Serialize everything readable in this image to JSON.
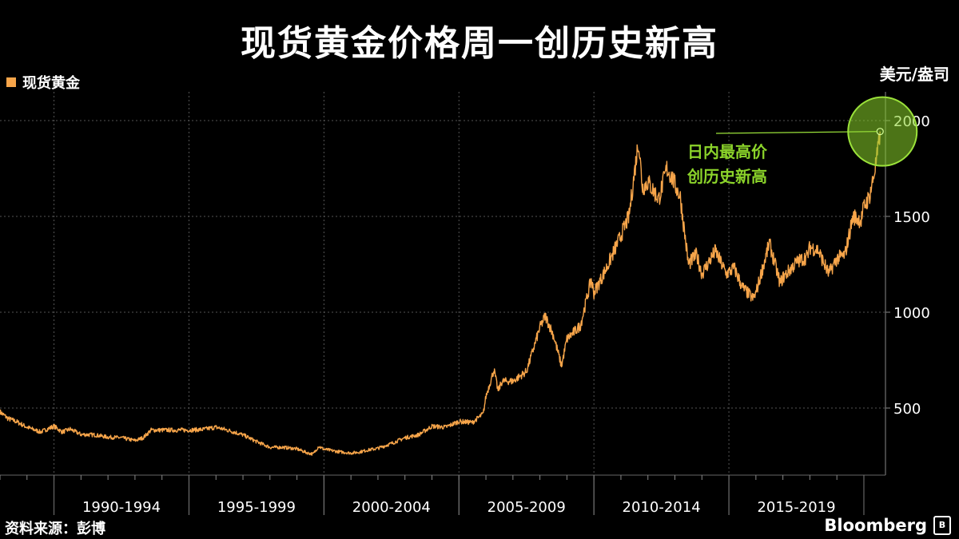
{
  "title": "现货黄金价格周一创历史新高",
  "unit": "美元/盎司",
  "source": "资料来源：彭博",
  "brand": "Bloomberg",
  "chart_data": {
    "type": "line",
    "title": "现货黄金价格周一创历史新高",
    "ylabel": "美元/盎司",
    "ylim": [
      150,
      2150
    ],
    "xlim": [
      1988.0,
      2020.8
    ],
    "yticks": [
      500,
      1000,
      1500,
      2000
    ],
    "x_categories": [
      "1990-1994",
      "1995-1999",
      "2000-2004",
      "2005-2009",
      "2010-2014",
      "2015-2019"
    ],
    "x_category_bounds": [
      [
        1990,
        1995
      ],
      [
        1995,
        2000
      ],
      [
        2000,
        2005
      ],
      [
        2005,
        2010
      ],
      [
        2010,
        2015
      ],
      [
        2015,
        2020
      ]
    ],
    "grid": true,
    "legend_position": "top-left",
    "series": [
      {
        "name": "现货黄金",
        "color": "#f7a54a",
        "x": [
          1988.0,
          1988.3,
          1988.6,
          1989.0,
          1989.5,
          1990.0,
          1990.3,
          1990.6,
          1991.0,
          1991.5,
          1992.0,
          1992.5,
          1993.0,
          1993.3,
          1993.6,
          1994.0,
          1994.5,
          1995.0,
          1995.5,
          1996.0,
          1996.5,
          1997.0,
          1997.5,
          1998.0,
          1998.5,
          1999.0,
          1999.4,
          1999.6,
          1999.8,
          2000.0,
          2000.5,
          2001.0,
          2001.3,
          2001.6,
          2002.0,
          2002.5,
          2003.0,
          2003.5,
          2004.0,
          2004.5,
          2005.0,
          2005.5,
          2005.9,
          2006.0,
          2006.3,
          2006.45,
          2006.6,
          2007.0,
          2007.5,
          2008.0,
          2008.2,
          2008.5,
          2008.8,
          2009.0,
          2009.5,
          2009.9,
          2010.0,
          2010.5,
          2011.0,
          2011.3,
          2011.65,
          2011.8,
          2012.0,
          2012.4,
          2012.7,
          2012.9,
          2013.2,
          2013.5,
          2013.8,
          2014.0,
          2014.5,
          2014.9,
          2015.2,
          2015.5,
          2015.9,
          2016.0,
          2016.5,
          2016.9,
          2017.0,
          2017.5,
          2017.9,
          2018.0,
          2018.3,
          2018.7,
          2019.0,
          2019.3,
          2019.6,
          2019.9,
          2020.0,
          2020.2,
          2020.35,
          2020.5,
          2020.6
        ],
        "values": [
          480,
          445,
          430,
          400,
          375,
          405,
          375,
          390,
          362,
          360,
          348,
          345,
          330,
          345,
          385,
          385,
          385,
          385,
          388,
          400,
          382,
          360,
          325,
          295,
          295,
          287,
          265,
          260,
          300,
          285,
          273,
          265,
          270,
          280,
          290,
          315,
          345,
          360,
          405,
          400,
          430,
          425,
          470,
          560,
          700,
          590,
          640,
          640,
          690,
          920,
          980,
          880,
          720,
          860,
          930,
          1170,
          1100,
          1240,
          1400,
          1500,
          1895,
          1650,
          1680,
          1590,
          1750,
          1700,
          1600,
          1250,
          1300,
          1200,
          1320,
          1200,
          1230,
          1130,
          1070,
          1100,
          1360,
          1150,
          1180,
          1260,
          1290,
          1340,
          1325,
          1200,
          1280,
          1300,
          1500,
          1480,
          1550,
          1600,
          1700,
          1820,
          1943
        ]
      }
    ],
    "annotations": [
      {
        "text_lines": [
          "日内最高价",
          "创历史新高"
        ],
        "x": 2020.6,
        "y": 1943
      }
    ]
  }
}
